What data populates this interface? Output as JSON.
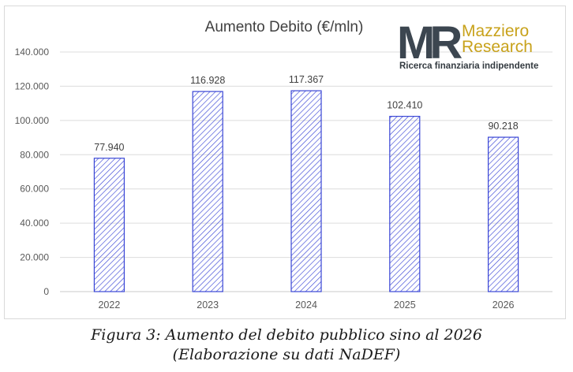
{
  "chart_data": {
    "type": "bar",
    "title": "Aumento Debito (€/mln)",
    "categories": [
      "2022",
      "2023",
      "2024",
      "2025",
      "2026"
    ],
    "values": [
      77940,
      116928,
      117367,
      102410,
      90218
    ],
    "value_labels": [
      "77.940",
      "116.928",
      "117.367",
      "102.410",
      "90.218"
    ],
    "y_ticks": [
      0,
      20000,
      40000,
      60000,
      80000,
      100000,
      120000,
      140000
    ],
    "y_tick_labels": [
      "0",
      "20.000",
      "40.000",
      "60.000",
      "80.000",
      "100.000",
      "120.000",
      "140.000"
    ],
    "ylim": [
      0,
      140000
    ],
    "xlabel": "",
    "ylabel": "",
    "grid": true,
    "legend": "none",
    "bar_color": "#3a46d6",
    "bar_fill": "diagonal-hatch"
  },
  "logo": {
    "mark": "MR",
    "name_line1": "Mazziero",
    "name_line2": "Research",
    "tagline": "Ricerca finanziaria indipendente",
    "mark_color": "#3c4650",
    "name_color": "#c8a21b"
  },
  "caption": {
    "line1": "Figura 3: Aumento del debito pubblico sino al 2026",
    "line2": "(Elaborazione su dati NaDEF)"
  }
}
